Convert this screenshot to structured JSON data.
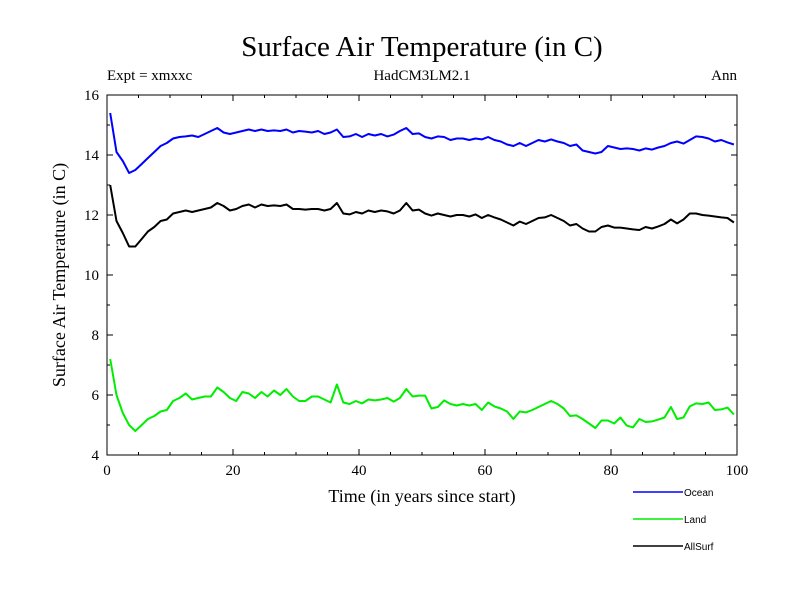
{
  "chart_data": {
    "type": "line",
    "title": "Surface Air Temperature (in C)",
    "header_left": "Expt = xmxxc",
    "header_center": "HadCM3LM2.1",
    "header_right": "Ann",
    "xlabel": "Time (in years since start)",
    "ylabel": "Surface Air Temperature (in C)",
    "xlim": [
      0,
      100
    ],
    "ylim": [
      4,
      16
    ],
    "xticks": [
      0,
      20,
      40,
      60,
      80,
      100
    ],
    "yticks": [
      4,
      6,
      8,
      10,
      12,
      14,
      16
    ],
    "grid": false,
    "legend_position": "bottom-right, below plot",
    "series": [
      {
        "name": "Ocean",
        "color": "#0000ff",
        "x": [
          0.5,
          1.5,
          2.5,
          3.5,
          4.5,
          5.5,
          6.5,
          7.5,
          8.5,
          9.5,
          10.5,
          11.5,
          12.5,
          13.5,
          14.5,
          15.5,
          16.5,
          17.5,
          18.5,
          19.5,
          20.5,
          21.5,
          22.5,
          23.5,
          24.5,
          25.5,
          26.5,
          27.5,
          28.5,
          29.5,
          30.5,
          31.5,
          32.5,
          33.5,
          34.5,
          35.5,
          36.5,
          37.5,
          38.5,
          39.5,
          40.5,
          41.5,
          42.5,
          43.5,
          44.5,
          45.5,
          46.5,
          47.5,
          48.5,
          49.5,
          50.5,
          51.5,
          52.5,
          53.5,
          54.5,
          55.5,
          56.5,
          57.5,
          58.5,
          59.5,
          60.5,
          61.5,
          62.5,
          63.5,
          64.5,
          65.5,
          66.5,
          67.5,
          68.5,
          69.5,
          70.5,
          71.5,
          72.5,
          73.5,
          74.5,
          75.5,
          76.5,
          77.5,
          78.5,
          79.5,
          80.5,
          81.5,
          82.5,
          83.5,
          84.5,
          85.5,
          86.5,
          87.5,
          88.5,
          89.5,
          90.5,
          91.5,
          92.5,
          93.5,
          94.5,
          95.5,
          96.5,
          97.5,
          98.5,
          99.5
        ],
        "y": [
          15.4,
          14.1,
          13.8,
          13.4,
          13.5,
          13.7,
          13.9,
          14.1,
          14.3,
          14.4,
          14.55,
          14.6,
          14.62,
          14.65,
          14.6,
          14.7,
          14.8,
          14.9,
          14.75,
          14.7,
          14.75,
          14.8,
          14.85,
          14.8,
          14.85,
          14.8,
          14.82,
          14.8,
          14.85,
          14.75,
          14.8,
          14.78,
          14.75,
          14.8,
          14.7,
          14.75,
          14.85,
          14.6,
          14.62,
          14.7,
          14.6,
          14.7,
          14.65,
          14.7,
          14.62,
          14.68,
          14.8,
          14.9,
          14.7,
          14.72,
          14.6,
          14.55,
          14.62,
          14.6,
          14.5,
          14.55,
          14.55,
          14.5,
          14.55,
          14.52,
          14.6,
          14.5,
          14.45,
          14.35,
          14.3,
          14.4,
          14.3,
          14.4,
          14.5,
          14.45,
          14.52,
          14.45,
          14.4,
          14.3,
          14.35,
          14.15,
          14.1,
          14.05,
          14.1,
          14.3,
          14.25,
          14.2,
          14.22,
          14.2,
          14.15,
          14.22,
          14.18,
          14.25,
          14.3,
          14.4,
          14.45,
          14.38,
          14.5,
          14.62,
          14.6,
          14.55,
          14.45,
          14.5,
          14.42,
          14.35
        ]
      },
      {
        "name": "Land",
        "color": "#00ee00",
        "x": [
          0.5,
          1.5,
          2.5,
          3.5,
          4.5,
          5.5,
          6.5,
          7.5,
          8.5,
          9.5,
          10.5,
          11.5,
          12.5,
          13.5,
          14.5,
          15.5,
          16.5,
          17.5,
          18.5,
          19.5,
          20.5,
          21.5,
          22.5,
          23.5,
          24.5,
          25.5,
          26.5,
          27.5,
          28.5,
          29.5,
          30.5,
          31.5,
          32.5,
          33.5,
          34.5,
          35.5,
          36.5,
          37.5,
          38.5,
          39.5,
          40.5,
          41.5,
          42.5,
          43.5,
          44.5,
          45.5,
          46.5,
          47.5,
          48.5,
          49.5,
          50.5,
          51.5,
          52.5,
          53.5,
          54.5,
          55.5,
          56.5,
          57.5,
          58.5,
          59.5,
          60.5,
          61.5,
          62.5,
          63.5,
          64.5,
          65.5,
          66.5,
          67.5,
          68.5,
          69.5,
          70.5,
          71.5,
          72.5,
          73.5,
          74.5,
          75.5,
          76.5,
          77.5,
          78.5,
          79.5,
          80.5,
          81.5,
          82.5,
          83.5,
          84.5,
          85.5,
          86.5,
          87.5,
          88.5,
          89.5,
          90.5,
          91.5,
          92.5,
          93.5,
          94.5,
          95.5,
          96.5,
          97.5,
          98.5,
          99.5
        ],
        "y": [
          7.2,
          6.0,
          5.4,
          5.0,
          4.8,
          5.0,
          5.2,
          5.3,
          5.45,
          5.5,
          5.8,
          5.9,
          6.05,
          5.85,
          5.9,
          5.95,
          5.95,
          6.25,
          6.1,
          5.9,
          5.8,
          6.1,
          6.05,
          5.9,
          6.1,
          5.95,
          6.15,
          6.0,
          6.2,
          5.95,
          5.8,
          5.8,
          5.95,
          5.95,
          5.85,
          5.75,
          6.35,
          5.75,
          5.7,
          5.8,
          5.72,
          5.85,
          5.82,
          5.85,
          5.9,
          5.78,
          5.9,
          6.2,
          5.95,
          5.98,
          5.98,
          5.55,
          5.6,
          5.82,
          5.7,
          5.65,
          5.7,
          5.65,
          5.7,
          5.5,
          5.75,
          5.62,
          5.55,
          5.45,
          5.2,
          5.45,
          5.42,
          5.5,
          5.6,
          5.7,
          5.8,
          5.7,
          5.55,
          5.3,
          5.32,
          5.2,
          5.05,
          4.9,
          5.15,
          5.15,
          5.05,
          5.25,
          4.98,
          4.92,
          5.2,
          5.1,
          5.12,
          5.18,
          5.25,
          5.6,
          5.2,
          5.25,
          5.62,
          5.72,
          5.7,
          5.75,
          5.5,
          5.52,
          5.58,
          5.35
        ]
      },
      {
        "name": "AllSurf",
        "color": "#000000",
        "x": [
          0.5,
          1.5,
          2.5,
          3.5,
          4.5,
          5.5,
          6.5,
          7.5,
          8.5,
          9.5,
          10.5,
          11.5,
          12.5,
          13.5,
          14.5,
          15.5,
          16.5,
          17.5,
          18.5,
          19.5,
          20.5,
          21.5,
          22.5,
          23.5,
          24.5,
          25.5,
          26.5,
          27.5,
          28.5,
          29.5,
          30.5,
          31.5,
          32.5,
          33.5,
          34.5,
          35.5,
          36.5,
          37.5,
          38.5,
          39.5,
          40.5,
          41.5,
          42.5,
          43.5,
          44.5,
          45.5,
          46.5,
          47.5,
          48.5,
          49.5,
          50.5,
          51.5,
          52.5,
          53.5,
          54.5,
          55.5,
          56.5,
          57.5,
          58.5,
          59.5,
          60.5,
          61.5,
          62.5,
          63.5,
          64.5,
          65.5,
          66.5,
          67.5,
          68.5,
          69.5,
          70.5,
          71.5,
          72.5,
          73.5,
          74.5,
          75.5,
          76.5,
          77.5,
          78.5,
          79.5,
          80.5,
          81.5,
          82.5,
          83.5,
          84.5,
          85.5,
          86.5,
          87.5,
          88.5,
          89.5,
          90.5,
          91.5,
          92.5,
          93.5,
          94.5,
          95.5,
          96.5,
          97.5,
          98.5,
          99.5
        ],
        "y": [
          13.0,
          11.8,
          11.4,
          10.95,
          10.95,
          11.2,
          11.45,
          11.6,
          11.8,
          11.85,
          12.05,
          12.1,
          12.15,
          12.1,
          12.15,
          12.2,
          12.25,
          12.4,
          12.3,
          12.15,
          12.2,
          12.3,
          12.35,
          12.25,
          12.35,
          12.3,
          12.32,
          12.3,
          12.35,
          12.2,
          12.2,
          12.18,
          12.2,
          12.2,
          12.15,
          12.2,
          12.4,
          12.05,
          12.02,
          12.1,
          12.05,
          12.15,
          12.1,
          12.15,
          12.12,
          12.05,
          12.15,
          12.4,
          12.15,
          12.18,
          12.05,
          11.98,
          12.05,
          12.0,
          11.95,
          12.0,
          12.0,
          11.95,
          12.02,
          11.9,
          12.0,
          11.92,
          11.85,
          11.75,
          11.65,
          11.78,
          11.7,
          11.8,
          11.9,
          11.92,
          12.0,
          11.9,
          11.8,
          11.65,
          11.7,
          11.55,
          11.45,
          11.45,
          11.6,
          11.65,
          11.58,
          11.58,
          11.55,
          11.52,
          11.5,
          11.6,
          11.55,
          11.62,
          11.7,
          11.85,
          11.72,
          11.85,
          12.05,
          12.05,
          12.0,
          11.98,
          11.95,
          11.92,
          11.9,
          11.75
        ]
      }
    ]
  }
}
